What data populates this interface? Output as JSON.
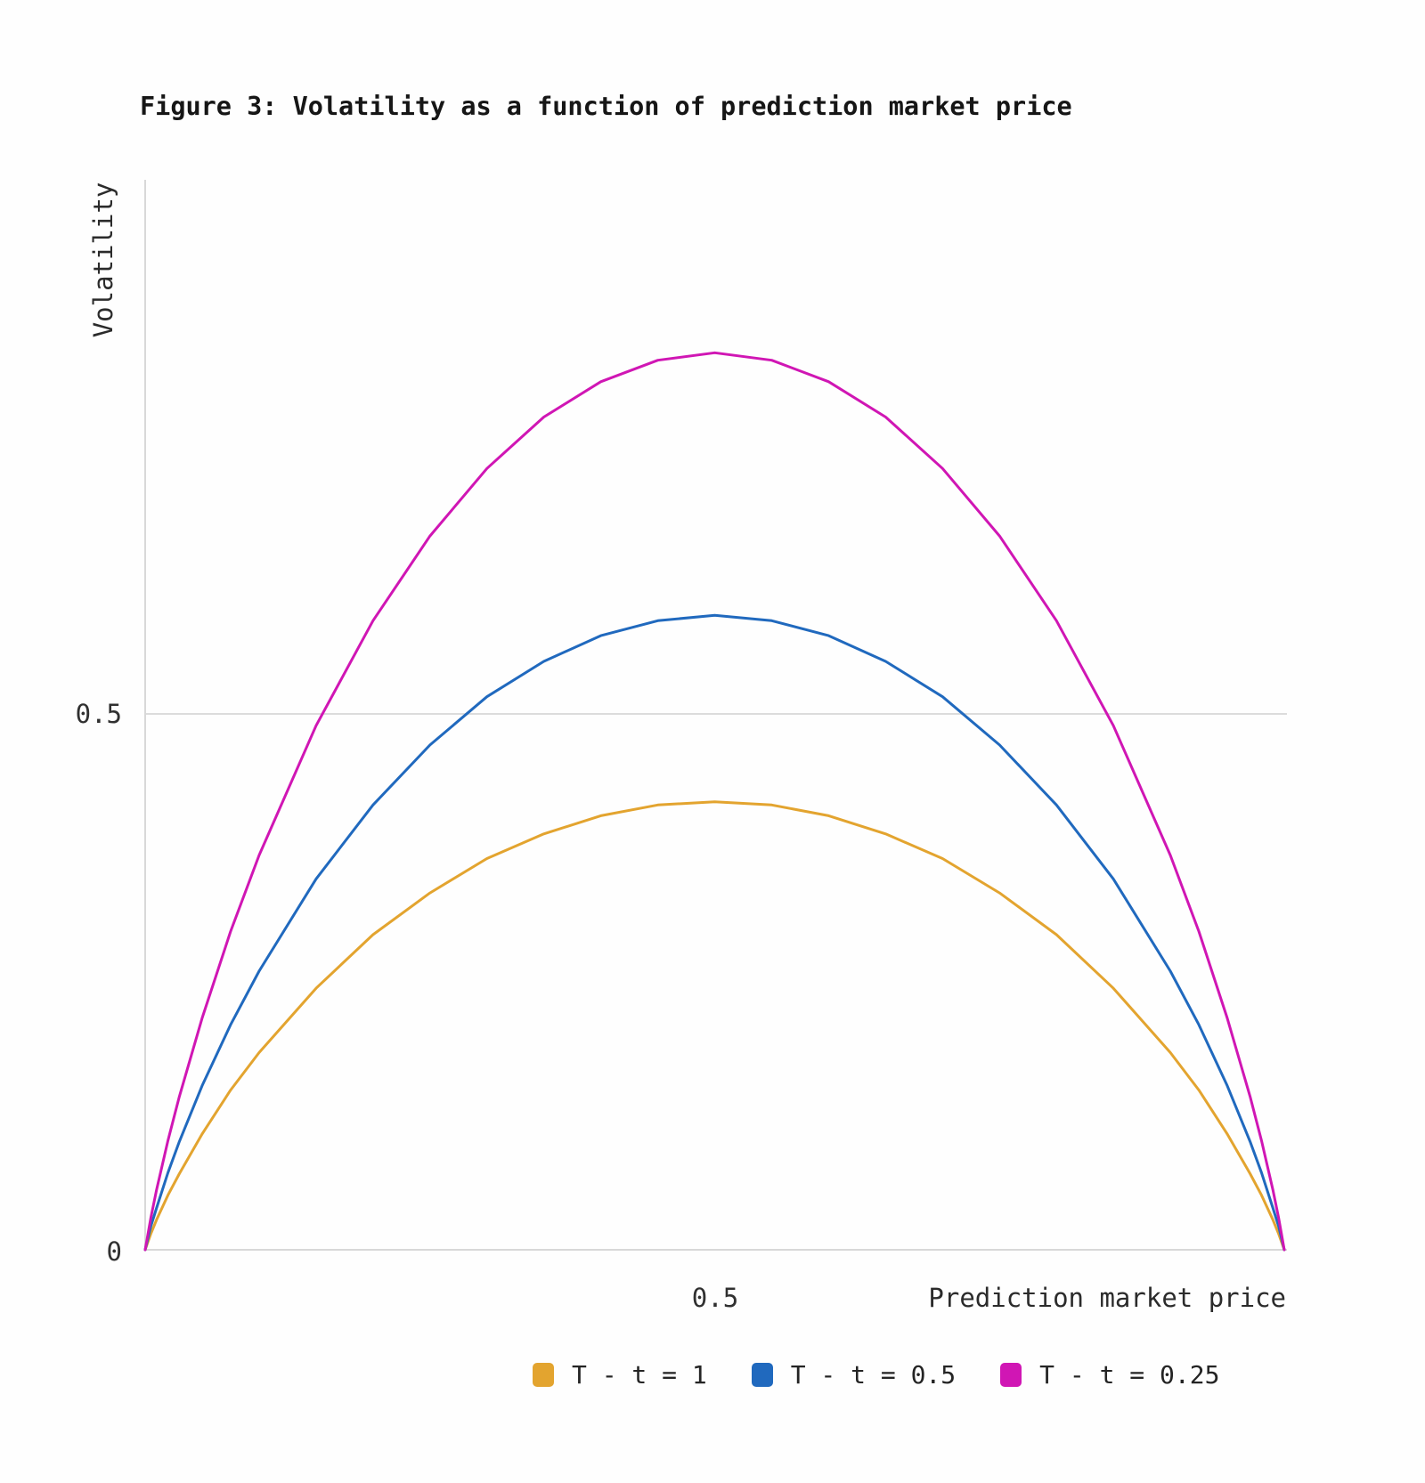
{
  "figure": {
    "title": "Figure 3: Volatility as a function of prediction market price"
  },
  "axes": {
    "y_label": "Volatility",
    "x_label": "Prediction market price",
    "y_tick_half": "0.5",
    "y_tick_zero": "0",
    "x_tick_half": "0.5"
  },
  "legend": {
    "items": [
      {
        "label": "T - t = 1",
        "color": "#E3A42F"
      },
      {
        "label": "T - t = 0.5",
        "color": "#2069BE"
      },
      {
        "label": "T - t = 0.25",
        "color": "#D016B4"
      }
    ]
  },
  "chart_data": {
    "type": "line",
    "title": "Figure 3: Volatility as a function of prediction market price",
    "xlabel": "Prediction market price",
    "ylabel": "Volatility",
    "xlim": [
      0,
      1
    ],
    "ylim": [
      0,
      1
    ],
    "x_tick_values": [
      0.5
    ],
    "y_tick_values": [
      0,
      0.5
    ],
    "y_gridlines": [
      0.5
    ],
    "grid": "single horizontal gridline at y=0.5",
    "legend_position": "bottom",
    "shape_note": "volatility curves sigma(p)=k*phi(inv_Phi(p))/sqrt(T-t), all meeting 0 at p=0 and p=1",
    "x": [
      0,
      0.005,
      0.01,
      0.02,
      0.03,
      0.05,
      0.075,
      0.1,
      0.15,
      0.2,
      0.25,
      0.3,
      0.35,
      0.4,
      0.45,
      0.5,
      0.55,
      0.6,
      0.65,
      0.7,
      0.75,
      0.8,
      0.85,
      0.9,
      0.925,
      0.95,
      0.97,
      0.98,
      0.99,
      0.995,
      1
    ],
    "series": [
      {
        "name": "T - t = 1",
        "color": "#E3A42F",
        "peak": 0.418,
        "values": [
          0,
          0.015,
          0.028,
          0.051,
          0.071,
          0.108,
          0.149,
          0.184,
          0.244,
          0.294,
          0.333,
          0.365,
          0.388,
          0.405,
          0.415,
          0.418,
          0.415,
          0.405,
          0.388,
          0.365,
          0.333,
          0.294,
          0.244,
          0.184,
          0.149,
          0.108,
          0.071,
          0.051,
          0.028,
          0.015,
          0
        ]
      },
      {
        "name": "T - t = 0.5",
        "color": "#2069BE",
        "peak": 0.592,
        "values": [
          0,
          0.022,
          0.039,
          0.072,
          0.101,
          0.153,
          0.21,
          0.26,
          0.346,
          0.415,
          0.471,
          0.516,
          0.549,
          0.573,
          0.587,
          0.592,
          0.587,
          0.573,
          0.549,
          0.516,
          0.471,
          0.415,
          0.346,
          0.26,
          0.21,
          0.153,
          0.101,
          0.072,
          0.039,
          0.022,
          0
        ]
      },
      {
        "name": "T - t = 0.25",
        "color": "#D016B4",
        "peak": 0.837,
        "values": [
          0,
          0.03,
          0.056,
          0.102,
          0.143,
          0.216,
          0.297,
          0.368,
          0.489,
          0.587,
          0.666,
          0.729,
          0.777,
          0.81,
          0.83,
          0.837,
          0.83,
          0.81,
          0.777,
          0.729,
          0.666,
          0.587,
          0.489,
          0.368,
          0.297,
          0.216,
          0.143,
          0.102,
          0.056,
          0.03,
          0
        ]
      }
    ]
  },
  "style": {
    "axis_color": "#d8d8d8",
    "gridline_color": "#dcdcdc",
    "background": "#fefefe"
  }
}
